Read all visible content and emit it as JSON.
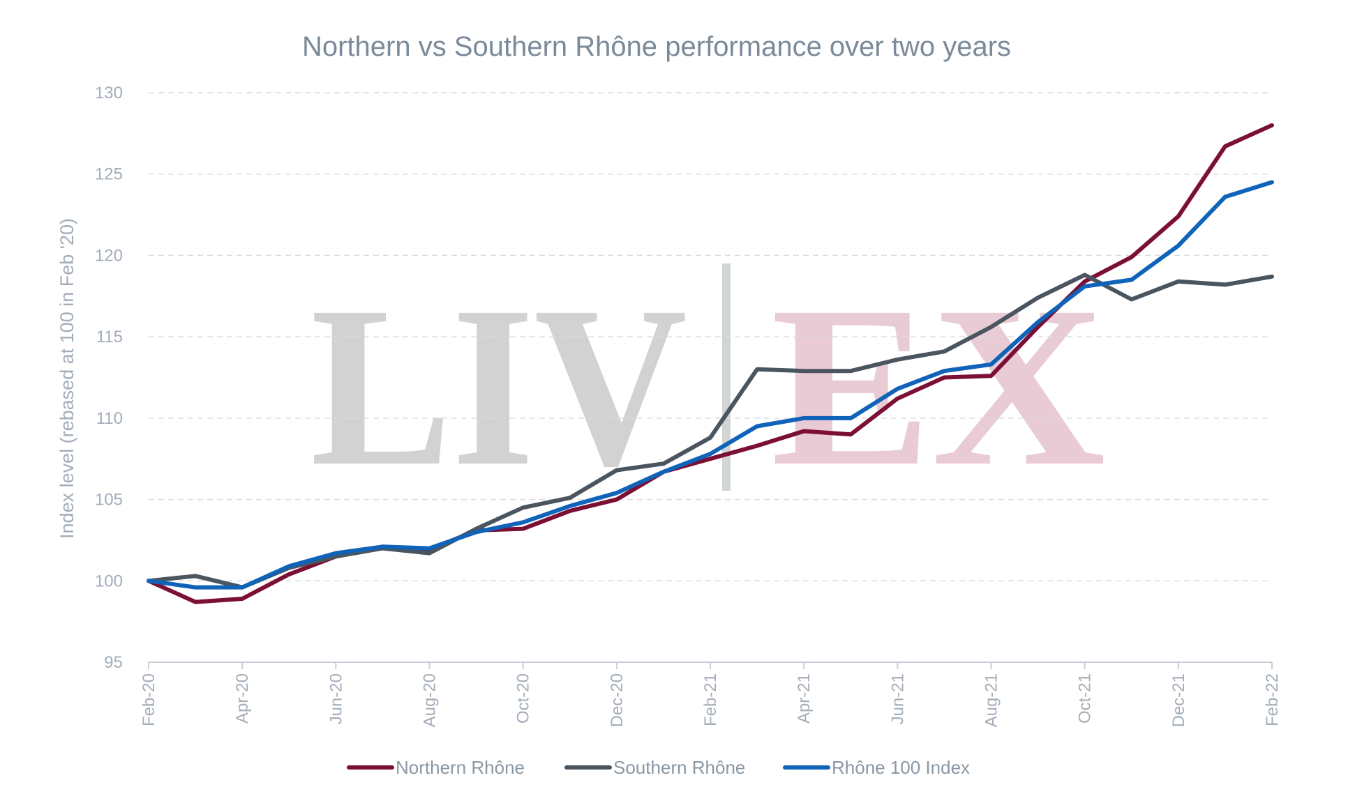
{
  "chart_data": {
    "type": "line",
    "title": "Northern vs Southern Rhône performance over two years",
    "xlabel": "",
    "ylabel": "Index level (rebased at 100 in Feb '20)",
    "ylim": [
      95,
      130
    ],
    "yticks": [
      95,
      100,
      105,
      110,
      115,
      120,
      125,
      130
    ],
    "grid": true,
    "legend_position": "bottom",
    "x": [
      "Feb-20",
      "Mar-20",
      "Apr-20",
      "May-20",
      "Jun-20",
      "Jul-20",
      "Aug-20",
      "Sep-20",
      "Oct-20",
      "Nov-20",
      "Dec-20",
      "Jan-21",
      "Feb-21",
      "Mar-21",
      "Apr-21",
      "May-21",
      "Jun-21",
      "Jul-21",
      "Aug-21",
      "Sep-21",
      "Oct-21",
      "Nov-21",
      "Dec-21",
      "Jan-22",
      "Feb-22"
    ],
    "xtick_labels": [
      "Feb-20",
      "Apr-20",
      "Jun-20",
      "Aug-20",
      "Oct-20",
      "Dec-20",
      "Feb-21",
      "Apr-21",
      "Jun-21",
      "Aug-21",
      "Oct-21",
      "Dec-21",
      "Feb-22"
    ],
    "series": [
      {
        "name": "Northern Rhône",
        "color": "#7b0f35",
        "values": [
          100.0,
          98.7,
          98.9,
          100.4,
          101.5,
          102.1,
          101.9,
          103.1,
          103.2,
          104.3,
          105.0,
          106.7,
          107.5,
          108.3,
          109.2,
          109.0,
          111.2,
          112.5,
          112.6,
          115.6,
          118.4,
          119.9,
          122.4,
          126.7,
          128.0
        ]
      },
      {
        "name": "Southern Rhône",
        "color": "#4a5560",
        "values": [
          100.0,
          100.3,
          99.6,
          100.8,
          101.5,
          102.0,
          101.7,
          103.2,
          104.5,
          105.1,
          106.8,
          107.2,
          108.8,
          113.0,
          112.9,
          112.9,
          113.6,
          114.1,
          115.6,
          117.4,
          118.8,
          117.3,
          118.4,
          118.2,
          118.7
        ]
      },
      {
        "name": "Rhône 100 Index",
        "color": "#0f63b8",
        "values": [
          100.0,
          99.6,
          99.6,
          100.9,
          101.7,
          102.1,
          102.0,
          103.0,
          103.6,
          104.6,
          105.4,
          106.7,
          107.8,
          109.5,
          110.0,
          110.0,
          111.8,
          112.9,
          113.3,
          115.9,
          118.1,
          118.5,
          120.6,
          123.6,
          124.5
        ]
      }
    ]
  },
  "watermark": {
    "left_text": "LIV",
    "right_text": "EX",
    "left_color": "#d2d2d2",
    "right_color": "#e9cbd6",
    "divider_color": "#d2d6d2"
  }
}
